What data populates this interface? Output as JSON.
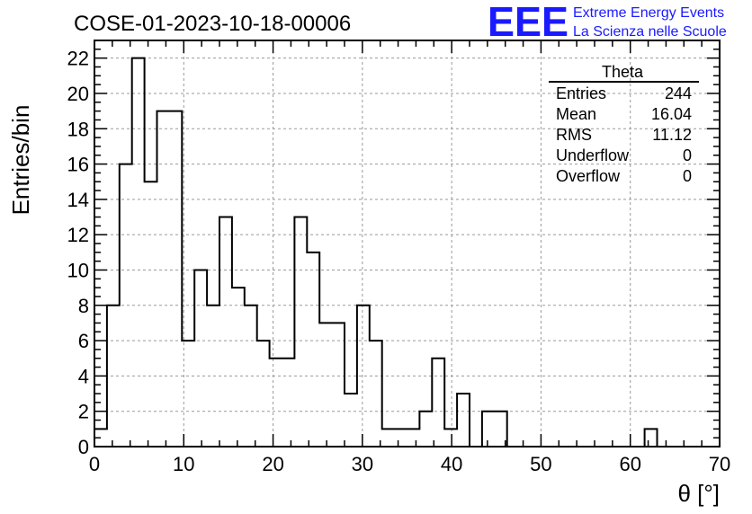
{
  "chart_data": {
    "type": "bar",
    "title": "COSE-01-2023-10-18-00006",
    "xlabel": "θ [°]",
    "ylabel": "Entries/bin",
    "xlim": [
      0,
      70
    ],
    "ylim": [
      0,
      23
    ],
    "grid": true,
    "bin_width": 1.4,
    "bin_start": 0,
    "x_ticks": [
      0,
      10,
      20,
      30,
      40,
      50,
      60,
      70
    ],
    "y_ticks": [
      0,
      2,
      4,
      6,
      8,
      10,
      12,
      14,
      16,
      18,
      20,
      22
    ],
    "values": [
      1,
      8,
      16,
      22,
      15,
      19,
      19,
      6,
      10,
      8,
      13,
      9,
      8,
      6,
      5,
      5,
      13,
      11,
      7,
      7,
      3,
      8,
      6,
      1,
      1,
      1,
      2,
      5,
      1,
      3,
      0,
      2,
      2,
      0,
      0,
      0,
      0,
      0,
      0,
      0,
      0,
      0,
      0,
      0,
      1,
      0,
      0,
      0,
      0,
      0
    ],
    "stats_box": {
      "title": "Theta",
      "rows": [
        {
          "label": "Entries",
          "value": "244"
        },
        {
          "label": "Mean",
          "value": "16.04"
        },
        {
          "label": "RMS",
          "value": "11.12"
        },
        {
          "label": "Underflow",
          "value": "0"
        },
        {
          "label": "Overflow",
          "value": "0"
        }
      ],
      "placement": "top-right"
    }
  },
  "logo": {
    "mark": "EEE",
    "line1": "Extreme Energy Events",
    "line2": "La Scienza nelle Scuole"
  },
  "colors": {
    "histogram_line": "#000000",
    "grid": "#888888",
    "logo": "#1a1aff"
  }
}
